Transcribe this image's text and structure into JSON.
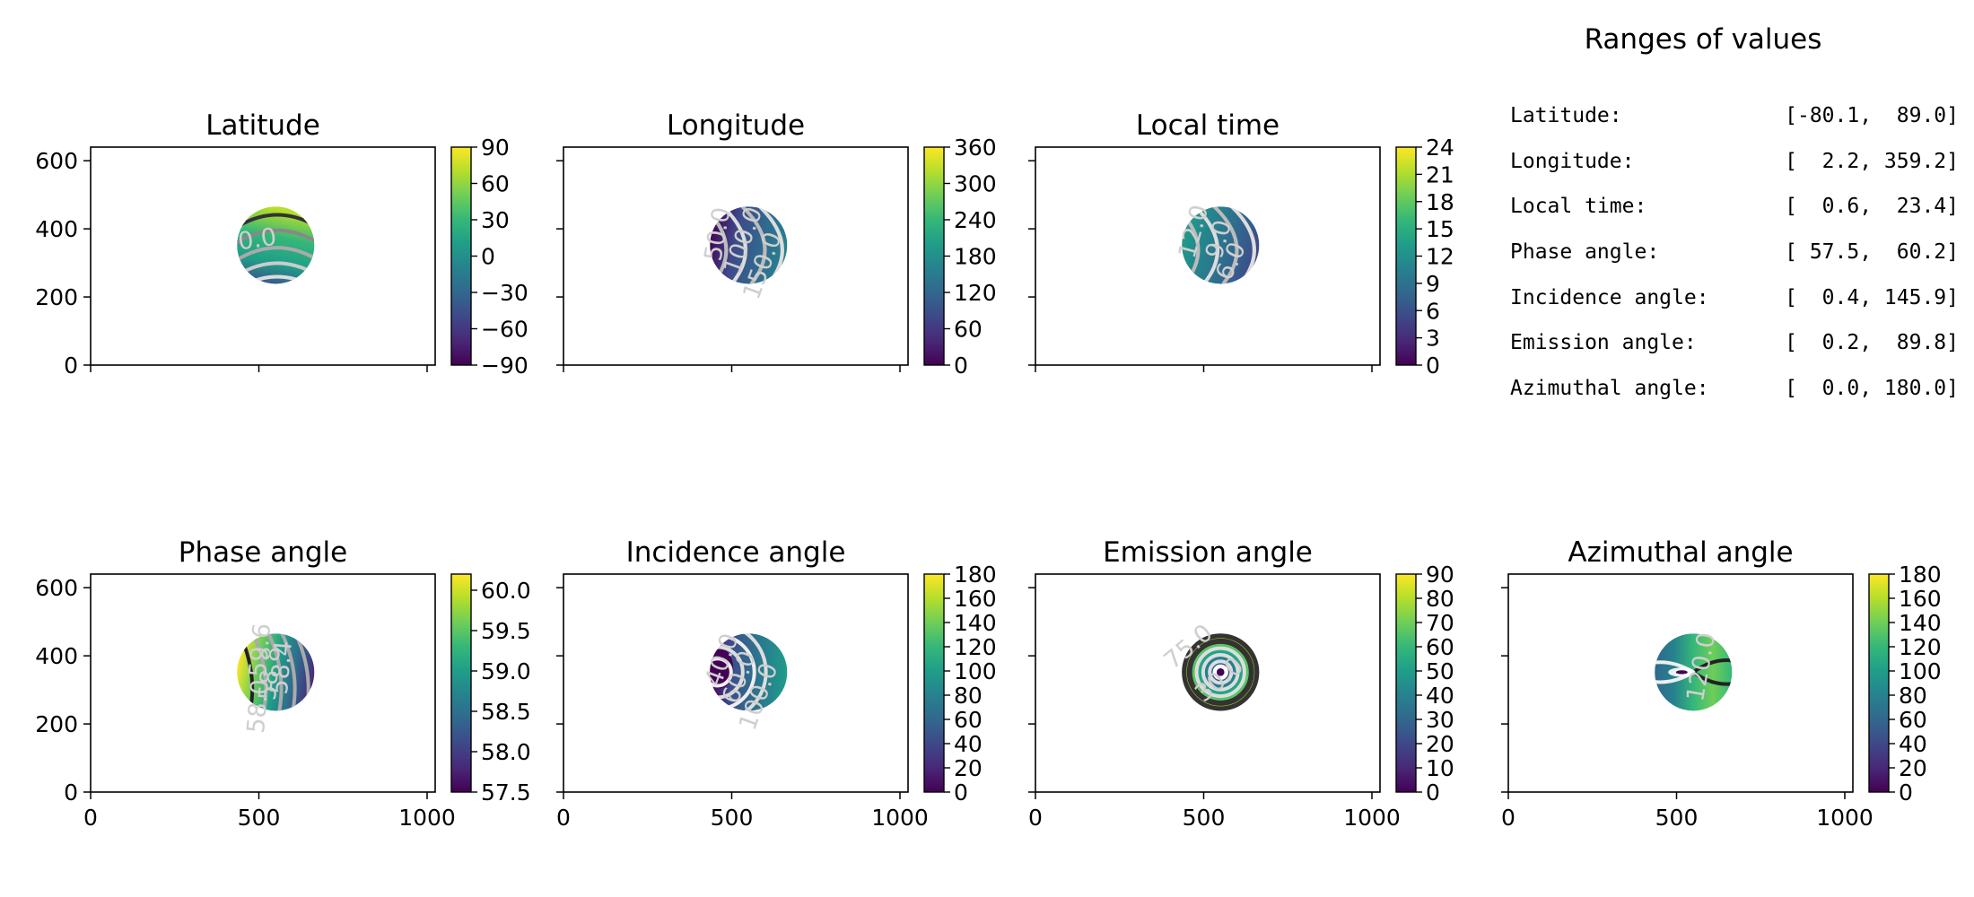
{
  "ranges": {
    "title": "Ranges of values",
    "rows": [
      {
        "label": "Latitude:",
        "value": "[-80.1,  89.0]"
      },
      {
        "label": "Longitude:",
        "value": "[  2.2, 359.2]"
      },
      {
        "label": "Local time:",
        "value": "[  0.6,  23.4]"
      },
      {
        "label": "Phase angle:",
        "value": "[ 57.5,  60.2]"
      },
      {
        "label": "Incidence angle:",
        "value": "[  0.4, 145.9]"
      },
      {
        "label": "Emission angle:",
        "value": "[  0.2,  89.8]"
      },
      {
        "label": "Azimuthal angle:",
        "value": "[  0.0, 180.0]"
      }
    ]
  },
  "colors": {
    "viridis": [
      "#440154",
      "#482878",
      "#3e4989",
      "#31688e",
      "#26828e",
      "#1f9e89",
      "#35b779",
      "#6ece58",
      "#b5de2b",
      "#fde725"
    ]
  },
  "chart_data": [
    {
      "type": "heatmap",
      "title": "Latitude",
      "xlim": [
        0,
        1024
      ],
      "ylim": [
        0,
        640
      ],
      "xticks": [
        0,
        500,
        1000
      ],
      "yticks": [
        0,
        200,
        400,
        600
      ],
      "disc": {
        "cx": 550,
        "cy": 352,
        "r": 115
      },
      "colorbar": {
        "min": -90,
        "max": 90,
        "ticks": [
          "90",
          "60",
          "30",
          "0",
          "−30",
          "−60",
          "−90"
        ]
      },
      "contour_labels": [
        "0.0"
      ]
    },
    {
      "type": "heatmap",
      "title": "Longitude",
      "xlim": [
        0,
        1024
      ],
      "ylim": [
        0,
        640
      ],
      "xticks": [
        0,
        500,
        1000
      ],
      "yticks": [
        0,
        200,
        400,
        600
      ],
      "disc": {
        "cx": 550,
        "cy": 352,
        "r": 115
      },
      "colorbar": {
        "min": 0,
        "max": 360,
        "ticks": [
          "360",
          "300",
          "240",
          "180",
          "120",
          "60",
          "0"
        ]
      },
      "contour_labels": [
        "50.0",
        "100.0",
        "150.0"
      ]
    },
    {
      "type": "heatmap",
      "title": "Local time",
      "xlim": [
        0,
        1024
      ],
      "ylim": [
        0,
        640
      ],
      "xticks": [
        0,
        500,
        1000
      ],
      "yticks": [
        0,
        200,
        400,
        600
      ],
      "disc": {
        "cx": 550,
        "cy": 352,
        "r": 115
      },
      "colorbar": {
        "min": 0,
        "max": 24,
        "ticks": [
          "24",
          "21",
          "18",
          "15",
          "12",
          "9",
          "6",
          "3",
          "0"
        ]
      },
      "contour_labels": [
        "12.0",
        "9.0",
        "6.0"
      ]
    },
    {
      "type": "heatmap",
      "title": "Phase angle",
      "xlim": [
        0,
        1024
      ],
      "ylim": [
        0,
        640
      ],
      "xticks": [
        0,
        500,
        1000
      ],
      "yticks": [
        0,
        200,
        400,
        600
      ],
      "disc": {
        "cx": 550,
        "cy": 352,
        "r": 115
      },
      "colorbar": {
        "min": 57.5,
        "max": 60.2,
        "ticks": [
          "60.0",
          "59.5",
          "59.0",
          "58.5",
          "58.0",
          "57.5"
        ]
      },
      "contour_labels": [
        "59.6",
        "58.8",
        "58.4",
        "58.0"
      ]
    },
    {
      "type": "heatmap",
      "title": "Incidence angle",
      "xlim": [
        0,
        1024
      ],
      "ylim": [
        0,
        640
      ],
      "xticks": [
        0,
        500,
        1000
      ],
      "yticks": [
        0,
        200,
        400,
        600
      ],
      "disc": {
        "cx": 550,
        "cy": 352,
        "r": 115
      },
      "colorbar": {
        "min": 0,
        "max": 180,
        "ticks": [
          "180",
          "160",
          "140",
          "120",
          "100",
          "80",
          "60",
          "40",
          "20",
          "0"
        ]
      },
      "contour_labels": [
        "40.0",
        "60.0",
        "100.0"
      ]
    },
    {
      "type": "heatmap",
      "title": "Emission angle",
      "xlim": [
        0,
        1024
      ],
      "ylim": [
        0,
        640
      ],
      "xticks": [
        0,
        500,
        1000
      ],
      "yticks": [
        0,
        200,
        400,
        600
      ],
      "disc": {
        "cx": 550,
        "cy": 352,
        "r": 115
      },
      "colorbar": {
        "min": 0,
        "max": 90,
        "ticks": [
          "90",
          "80",
          "70",
          "60",
          "50",
          "40",
          "30",
          "20",
          "10",
          "0"
        ]
      },
      "contour_labels": [
        "75.0",
        "30.0"
      ]
    },
    {
      "type": "heatmap",
      "title": "Azimuthal angle",
      "xlim": [
        0,
        1024
      ],
      "ylim": [
        0,
        640
      ],
      "xticks": [
        0,
        500,
        1000
      ],
      "yticks": [
        0,
        200,
        400,
        600
      ],
      "disc": {
        "cx": 550,
        "cy": 352,
        "r": 115
      },
      "colorbar": {
        "min": 0,
        "max": 180,
        "ticks": [
          "180",
          "160",
          "140",
          "120",
          "100",
          "80",
          "60",
          "40",
          "20",
          "0"
        ]
      },
      "contour_labels": [
        "120.0"
      ]
    }
  ]
}
